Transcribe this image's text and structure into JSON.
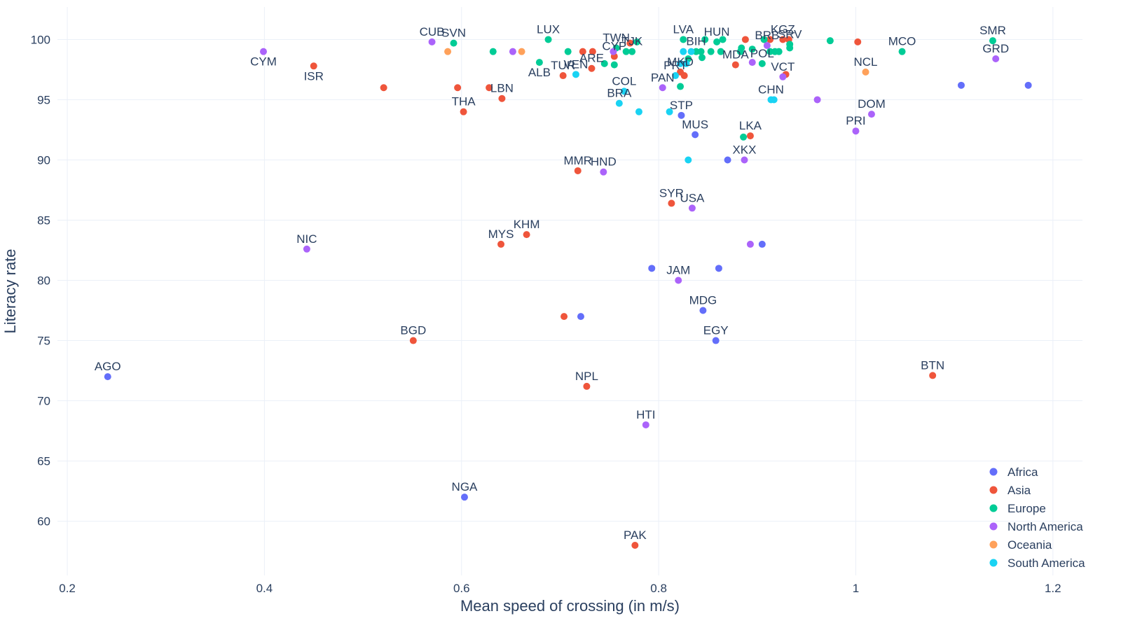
{
  "chart_data": {
    "type": "scatter",
    "xlabel": "Mean speed of crossing (in m/s)",
    "ylabel": "Literacy rate",
    "xlim": [
      0.19,
      1.23
    ],
    "ylim": [
      55.5,
      102.7
    ],
    "x_ticks": [
      0.2,
      0.4,
      0.6,
      0.8,
      1,
      1.2
    ],
    "x_tick_labels": [
      "0.2",
      "0.4",
      "0.6",
      "0.8",
      "1",
      "1.2"
    ],
    "y_ticks": [
      60,
      65,
      70,
      75,
      80,
      85,
      90,
      95,
      100
    ],
    "y_tick_labels": [
      "60",
      "65",
      "70",
      "75",
      "80",
      "85",
      "90",
      "95",
      "100"
    ],
    "grid": true,
    "legend_position": "bottom-right",
    "series": [
      {
        "name": "Africa",
        "color": "#636efa",
        "points": [
          {
            "x": 0.241,
            "y": 72.0,
            "label": "AGO"
          },
          {
            "x": 0.603,
            "y": 62.0,
            "label": "NGA"
          },
          {
            "x": 0.721,
            "y": 77.0,
            "label": ""
          },
          {
            "x": 0.793,
            "y": 81.0,
            "label": ""
          },
          {
            "x": 0.823,
            "y": 93.7,
            "label": "STP"
          },
          {
            "x": 0.837,
            "y": 92.1,
            "label": "MUS"
          },
          {
            "x": 0.845,
            "y": 77.5,
            "label": "MDG"
          },
          {
            "x": 0.858,
            "y": 75.0,
            "label": "EGY"
          },
          {
            "x": 0.861,
            "y": 81.0,
            "label": ""
          },
          {
            "x": 0.87,
            "y": 90.0,
            "label": ""
          },
          {
            "x": 0.905,
            "y": 83.0,
            "label": ""
          },
          {
            "x": 1.107,
            "y": 96.2,
            "label": ""
          },
          {
            "x": 1.175,
            "y": 96.2,
            "label": ""
          }
        ]
      },
      {
        "name": "Asia",
        "color": "#ef553b",
        "points": [
          {
            "x": 0.45,
            "y": 97.8,
            "label": "ISR"
          },
          {
            "x": 0.521,
            "y": 96.0,
            "label": ""
          },
          {
            "x": 0.551,
            "y": 75.0,
            "label": "BGD"
          },
          {
            "x": 0.596,
            "y": 96.0,
            "label": ""
          },
          {
            "x": 0.602,
            "y": 94.0,
            "label": "THA"
          },
          {
            "x": 0.628,
            "y": 96.0,
            "label": ""
          },
          {
            "x": 0.64,
            "y": 83.0,
            "label": "MYS"
          },
          {
            "x": 0.641,
            "y": 95.1,
            "label": "LBN"
          },
          {
            "x": 0.666,
            "y": 83.8,
            "label": "KHM"
          },
          {
            "x": 0.703,
            "y": 97.0,
            "label": "TUR"
          },
          {
            "x": 0.704,
            "y": 77.0,
            "label": ""
          },
          {
            "x": 0.718,
            "y": 89.1,
            "label": "MMR"
          },
          {
            "x": 0.723,
            "y": 99.0,
            "label": ""
          },
          {
            "x": 0.727,
            "y": 71.2,
            "label": "NPL"
          },
          {
            "x": 0.732,
            "y": 97.6,
            "label": "ARE"
          },
          {
            "x": 0.733,
            "y": 99.0,
            "label": ""
          },
          {
            "x": 0.755,
            "y": 98.6,
            "label": "CYP"
          },
          {
            "x": 0.771,
            "y": 99.7,
            "label": ""
          },
          {
            "x": 0.776,
            "y": 58.0,
            "label": "PAK"
          },
          {
            "x": 0.813,
            "y": 86.4,
            "label": "SYR"
          },
          {
            "x": 0.822,
            "y": 97.3,
            "label": "MKD"
          },
          {
            "x": 0.826,
            "y": 97.0,
            "label": ""
          },
          {
            "x": 0.878,
            "y": 97.9,
            "label": "MDA"
          },
          {
            "x": 0.888,
            "y": 100.0,
            "label": ""
          },
          {
            "x": 0.893,
            "y": 92.0,
            "label": "LKA"
          },
          {
            "x": 0.907,
            "y": 100.0,
            "label": ""
          },
          {
            "x": 0.913,
            "y": 100.0,
            "label": ""
          },
          {
            "x": 0.926,
            "y": 100.0,
            "label": "KGZ"
          },
          {
            "x": 0.929,
            "y": 97.1,
            "label": ""
          },
          {
            "x": 0.932,
            "y": 100.0,
            "label": ""
          },
          {
            "x": 1.002,
            "y": 99.8,
            "label": ""
          },
          {
            "x": 1.078,
            "y": 72.1,
            "label": "BTN"
          }
        ]
      },
      {
        "name": "Europe",
        "color": "#00cc96",
        "points": [
          {
            "x": 0.592,
            "y": 99.7,
            "label": "SVN"
          },
          {
            "x": 0.632,
            "y": 99.0,
            "label": ""
          },
          {
            "x": 0.679,
            "y": 98.1,
            "label": "ALB"
          },
          {
            "x": 0.688,
            "y": 100.0,
            "label": "LUX"
          },
          {
            "x": 0.708,
            "y": 99.0,
            "label": ""
          },
          {
            "x": 0.745,
            "y": 98.0,
            "label": ""
          },
          {
            "x": 0.755,
            "y": 97.9,
            "label": ""
          },
          {
            "x": 0.757,
            "y": 99.3,
            "label": "TWN"
          },
          {
            "x": 0.767,
            "y": 99.0,
            "label": ""
          },
          {
            "x": 0.773,
            "y": 99.0,
            "label": "TJK"
          },
          {
            "x": 0.778,
            "y": 99.8,
            "label": ""
          },
          {
            "x": 0.822,
            "y": 96.1,
            "label": ""
          },
          {
            "x": 0.825,
            "y": 100.0,
            "label": "LVA"
          },
          {
            "x": 0.83,
            "y": 98.4,
            "label": ""
          },
          {
            "x": 0.838,
            "y": 99.0,
            "label": "BIH"
          },
          {
            "x": 0.843,
            "y": 99.0,
            "label": ""
          },
          {
            "x": 0.844,
            "y": 98.5,
            "label": ""
          },
          {
            "x": 0.847,
            "y": 100.0,
            "label": ""
          },
          {
            "x": 0.853,
            "y": 99.0,
            "label": ""
          },
          {
            "x": 0.859,
            "y": 99.8,
            "label": "HUN"
          },
          {
            "x": 0.863,
            "y": 99.0,
            "label": ""
          },
          {
            "x": 0.865,
            "y": 100.0,
            "label": ""
          },
          {
            "x": 0.883,
            "y": 99.0,
            "label": ""
          },
          {
            "x": 0.884,
            "y": 99.3,
            "label": ""
          },
          {
            "x": 0.886,
            "y": 91.9,
            "label": ""
          },
          {
            "x": 0.895,
            "y": 99.2,
            "label": ""
          },
          {
            "x": 0.905,
            "y": 98.0,
            "label": "POL"
          },
          {
            "x": 0.907,
            "y": 100.0,
            "label": ""
          },
          {
            "x": 0.913,
            "y": 99.0,
            "label": ""
          },
          {
            "x": 0.918,
            "y": 99.0,
            "label": ""
          },
          {
            "x": 0.922,
            "y": 99.0,
            "label": ""
          },
          {
            "x": 0.933,
            "y": 99.3,
            "label": ""
          },
          {
            "x": 0.933,
            "y": 99.6,
            "label": "SRV"
          },
          {
            "x": 0.974,
            "y": 99.9,
            "label": ""
          },
          {
            "x": 1.047,
            "y": 99.0,
            "label": "MCO"
          },
          {
            "x": 1.139,
            "y": 99.9,
            "label": "SMR"
          }
        ]
      },
      {
        "name": "North America",
        "color": "#ab63fa",
        "points": [
          {
            "x": 0.399,
            "y": 99.0,
            "label": "CYM"
          },
          {
            "x": 0.443,
            "y": 82.6,
            "label": "NIC"
          },
          {
            "x": 0.57,
            "y": 99.8,
            "label": "CUB"
          },
          {
            "x": 0.652,
            "y": 99.0,
            "label": ""
          },
          {
            "x": 0.744,
            "y": 89.0,
            "label": "HND"
          },
          {
            "x": 0.754,
            "y": 99.0,
            "label": ""
          },
          {
            "x": 0.787,
            "y": 68.0,
            "label": "HTI"
          },
          {
            "x": 0.804,
            "y": 96.0,
            "label": "PAN"
          },
          {
            "x": 0.82,
            "y": 80.0,
            "label": "JAM"
          },
          {
            "x": 0.834,
            "y": 86.0,
            "label": "USA"
          },
          {
            "x": 0.887,
            "y": 90.0,
            "label": "XKX"
          },
          {
            "x": 0.893,
            "y": 83.0,
            "label": ""
          },
          {
            "x": 0.895,
            "y": 98.1,
            "label": ""
          },
          {
            "x": 0.91,
            "y": 99.5,
            "label": "BRB"
          },
          {
            "x": 0.926,
            "y": 96.9,
            "label": "VCT"
          },
          {
            "x": 0.961,
            "y": 95.0,
            "label": ""
          },
          {
            "x": 1.0,
            "y": 92.4,
            "label": "PRI"
          },
          {
            "x": 1.016,
            "y": 93.8,
            "label": "DOM"
          },
          {
            "x": 1.142,
            "y": 98.4,
            "label": "GRD"
          }
        ]
      },
      {
        "name": "Oceania",
        "color": "#ffa15a",
        "points": [
          {
            "x": 0.586,
            "y": 99.0,
            "label": ""
          },
          {
            "x": 0.661,
            "y": 99.0,
            "label": ""
          },
          {
            "x": 1.01,
            "y": 97.3,
            "label": "NCL"
          }
        ]
      },
      {
        "name": "South America",
        "color": "#19d3f3",
        "points": [
          {
            "x": 0.716,
            "y": 97.1,
            "label": "VEN"
          },
          {
            "x": 0.76,
            "y": 94.7,
            "label": "BRA"
          },
          {
            "x": 0.765,
            "y": 95.7,
            "label": "COL"
          },
          {
            "x": 0.78,
            "y": 94.0,
            "label": ""
          },
          {
            "x": 0.811,
            "y": 94.0,
            "label": ""
          },
          {
            "x": 0.817,
            "y": 97.0,
            "label": "PRT"
          },
          {
            "x": 0.822,
            "y": 98.0,
            "label": ""
          },
          {
            "x": 0.825,
            "y": 99.0,
            "label": ""
          },
          {
            "x": 0.828,
            "y": 98.0,
            "label": ""
          },
          {
            "x": 0.83,
            "y": 90.0,
            "label": ""
          },
          {
            "x": 0.833,
            "y": 99.0,
            "label": ""
          },
          {
            "x": 0.914,
            "y": 95.0,
            "label": "CHN"
          },
          {
            "x": 0.917,
            "y": 95.0,
            "label": ""
          }
        ]
      }
    ]
  }
}
